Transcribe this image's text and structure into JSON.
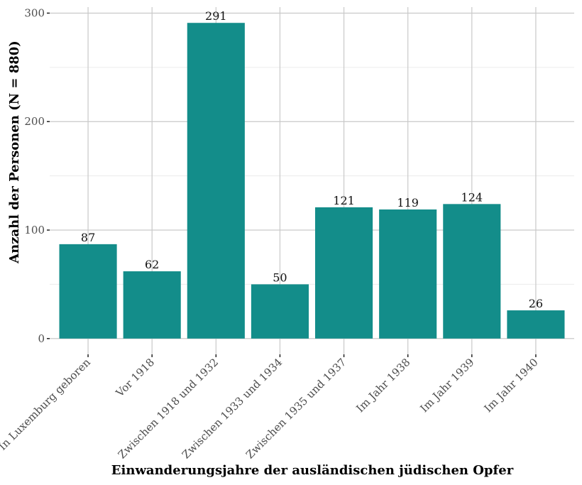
{
  "chart_data": {
    "type": "bar",
    "title": "",
    "xlabel": "Einwanderungsjahre der ausländischen jüdischen Opfer",
    "ylabel": "Anzahl der Personen (N = 880)",
    "categories": [
      "In Luxemburg geboren",
      "Vor 1918",
      "Zwischen 1918 und 1932",
      "Zwischen 1933 und 1934",
      "Zwischen 1935 und 1937",
      "Im Jahr 1938",
      "Im Jahr 1939",
      "Im Jahr 1940"
    ],
    "values": [
      87,
      62,
      291,
      50,
      121,
      119,
      124,
      26
    ],
    "data_labels": [
      "87",
      "62",
      "291",
      "50",
      "121",
      "119",
      "124",
      "26"
    ],
    "yticks": [
      0,
      100,
      200,
      300
    ],
    "ytick_labels": [
      "0",
      "100",
      "200",
      "300"
    ],
    "ylim": [
      0,
      300
    ],
    "grid": true,
    "legend": "none",
    "colors": {
      "bar": "#138d8a",
      "grid_major": "#c9c9c9",
      "grid_minor": "#ececec"
    }
  }
}
